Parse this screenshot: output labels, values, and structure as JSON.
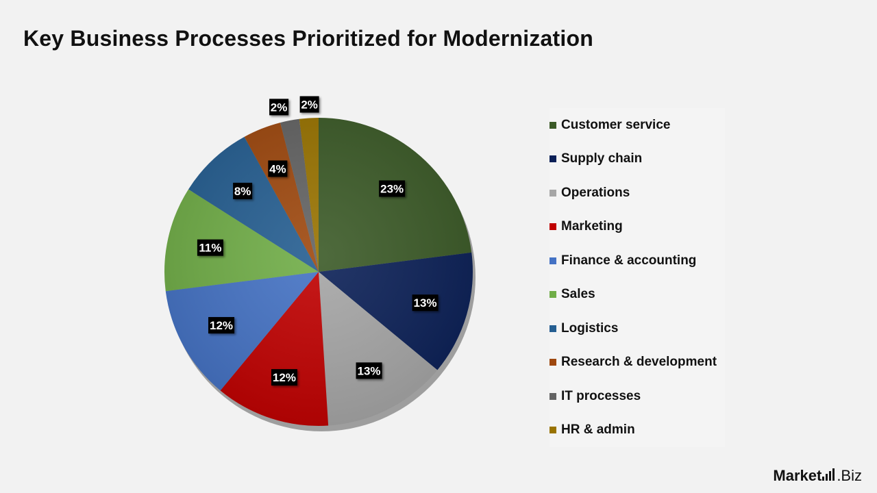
{
  "page": {
    "title": "Key Business Processes Prioritized for Modernization"
  },
  "brand": {
    "part1": "Market",
    "part2": ".Biz"
  },
  "chart_data": {
    "type": "pie",
    "title": "Key Business Processes Prioritized for Modernization",
    "legend_position": "right",
    "slices": [
      {
        "label": "Customer service",
        "value": 23,
        "display": "23%",
        "color": "#3b5a27"
      },
      {
        "label": "Supply chain",
        "value": 13,
        "display": "13%",
        "color": "#0b2057"
      },
      {
        "label": "Operations",
        "value": 13,
        "display": "13%",
        "color": "#a6a6a6"
      },
      {
        "label": "Marketing",
        "value": 12,
        "display": "12%",
        "color": "#c00000"
      },
      {
        "label": "Finance & accounting",
        "value": 12,
        "display": "12%",
        "color": "#4472c4"
      },
      {
        "label": "Sales",
        "value": 11,
        "display": "11%",
        "color": "#70ad47"
      },
      {
        "label": "Logistics",
        "value": 8,
        "display": "8%",
        "color": "#255e91"
      },
      {
        "label": "Research & development",
        "value": 4,
        "display": "4%",
        "color": "#9e480e"
      },
      {
        "label": "IT processes",
        "value": 2,
        "display": "2%",
        "color": "#636363"
      },
      {
        "label": "HR & admin",
        "value": 2,
        "display": "2%",
        "color": "#997300"
      }
    ]
  }
}
